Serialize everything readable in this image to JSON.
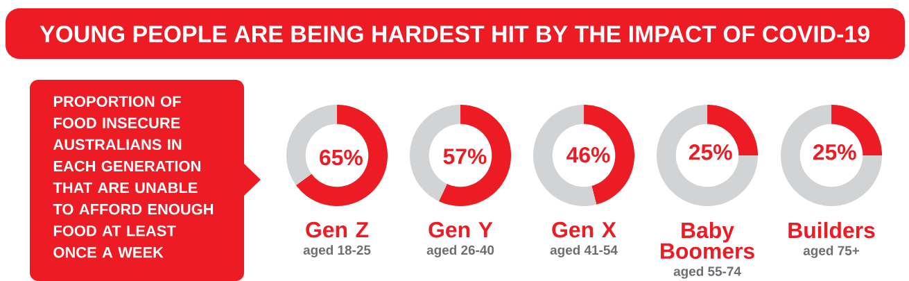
{
  "chart_data": [
    {
      "type": "other",
      "title": "YOUNG PEOPLE ARE BEING HARDEST HIT BY THE IMPACT OF COVID-19",
      "annotations": [
        "PROPORTION OF FOOD INSECURE AUSTRALIANS IN EACH GENERATION THAT ARE UNABLE TO AFFORD ENOUGH FOOD AT LEAST ONCE A WEEK"
      ]
    },
    {
      "type": "donut",
      "title": "Gen Z",
      "subtitle": "aged 18-25",
      "categories": [
        null,
        null
      ],
      "values": [
        65,
        35
      ],
      "colors": [
        "#ed1c24",
        "#d1d3d4"
      ],
      "value_labels": [
        "65%",
        null
      ]
    },
    {
      "type": "donut",
      "title": "Gen Y",
      "subtitle": "aged 26-40",
      "categories": [
        null,
        null
      ],
      "values": [
        57,
        43
      ],
      "colors": [
        "#ed1c24",
        "#d1d3d4"
      ],
      "value_labels": [
        "57%",
        null
      ]
    },
    {
      "type": "donut",
      "title": "Gen X",
      "subtitle": "aged 41-54",
      "categories": [
        null,
        null
      ],
      "values": [
        46,
        54
      ],
      "colors": [
        "#ed1c24",
        "#d1d3d4"
      ],
      "value_labels": [
        "46%",
        null
      ]
    },
    {
      "type": "donut",
      "title": "Baby Boomers",
      "subtitle": "aged 55-74",
      "categories": [
        null,
        null
      ],
      "values": [
        25,
        75
      ],
      "colors": [
        "#ed1c24",
        "#d1d3d4"
      ],
      "value_labels": [
        "25%",
        null
      ]
    },
    {
      "type": "donut",
      "title": "Builders",
      "subtitle": "aged 75+",
      "categories": [
        null,
        null
      ],
      "values": [
        25,
        75
      ],
      "colors": [
        "#ed1c24",
        "#d1d3d4"
      ],
      "value_labels": [
        "25%",
        null
      ]
    }
  ]
}
